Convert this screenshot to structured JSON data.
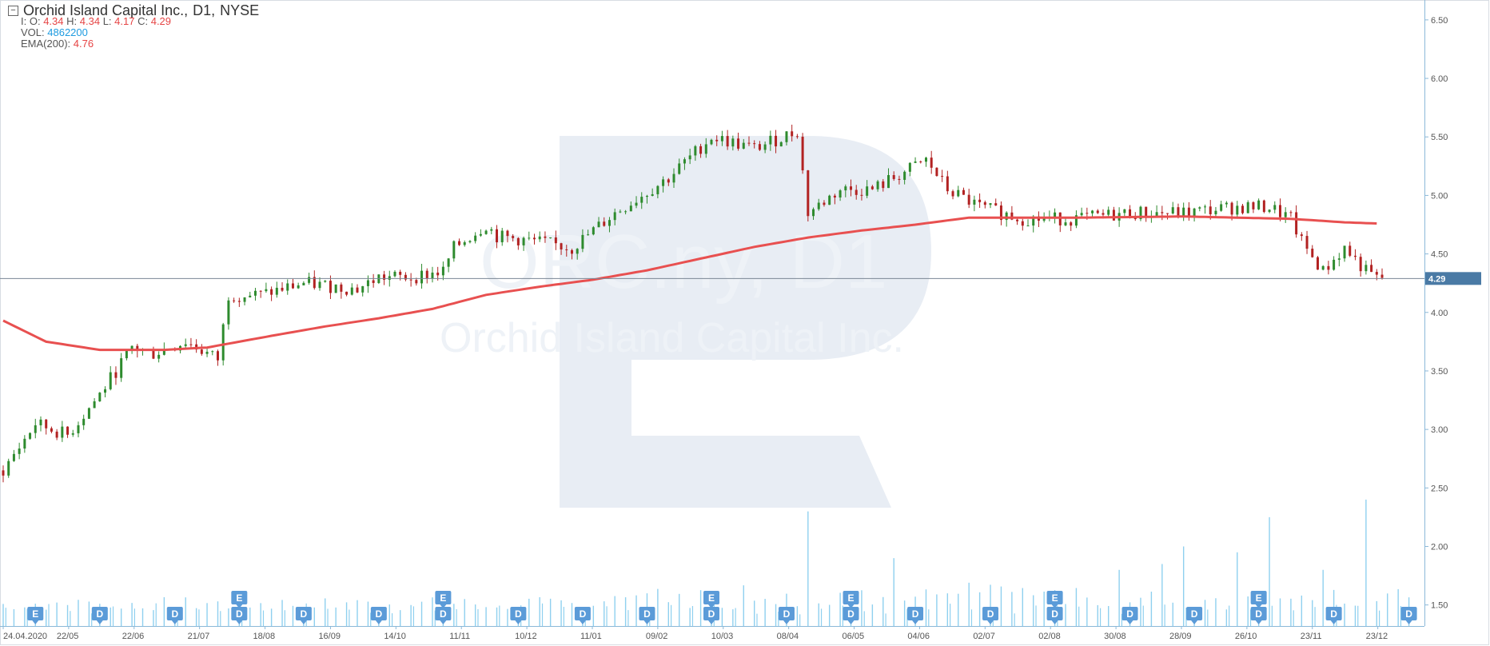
{
  "header": {
    "symbol_title": "Orchid Island Capital Inc.,",
    "timeframe": "D1,",
    "exchange": "NYSE",
    "ohlc": {
      "o_label": "I: O:",
      "o": "4.34",
      "h_label": "H:",
      "h": "4.34",
      "l_label": "L:",
      "l": "4.17",
      "c_label": "C:",
      "c": "4.29"
    },
    "vol_label": "VOL:",
    "vol": "4862200",
    "ema_label": "EMA(200):",
    "ema": "4.76"
  },
  "colors": {
    "up": "#2e8b2e",
    "down": "#b22222",
    "ema": "#e85050",
    "volume": "#8fd0ef",
    "marker": "#5b9bd8",
    "axis": "#8bb8d8",
    "price_tag": "#4a7aa5",
    "watermark": "#e8edf4"
  },
  "watermark_text": [
    "ORC.ny, D1",
    "Orchid Island Capital Inc."
  ],
  "chart_data": {
    "type": "candlestick",
    "title": "Orchid Island Capital Inc., D1, NYSE",
    "ylim": [
      1.32,
      6.67
    ],
    "y_ticks": [
      "1.50",
      "2.00",
      "2.50",
      "3.00",
      "3.50",
      "4.00",
      "4.50",
      "5.00",
      "5.50",
      "6.00",
      "6.50"
    ],
    "x_ticks": [
      "24.04.2020",
      "22/05",
      "22/06",
      "21/07",
      "18/08",
      "16/09",
      "14/10",
      "11/11",
      "10/12",
      "11/01",
      "09/02",
      "10/03",
      "08/04",
      "06/05",
      "04/06",
      "02/07",
      "02/08",
      "30/08",
      "28/09",
      "26/10",
      "23/11",
      "23/12"
    ],
    "last_price": "4.29",
    "price_path": [
      [
        0,
        2.65
      ],
      [
        3,
        3.05
      ],
      [
        6,
        2.95
      ],
      [
        9,
        3.3
      ],
      [
        12,
        3.7
      ],
      [
        14,
        3.65
      ],
      [
        17,
        3.75
      ],
      [
        20,
        3.6
      ],
      [
        21,
        4.15
      ],
      [
        24,
        4.15
      ],
      [
        28,
        4.25
      ],
      [
        33,
        4.2
      ],
      [
        35,
        4.3
      ],
      [
        38,
        4.3
      ],
      [
        41,
        4.35
      ],
      [
        42,
        4.55
      ],
      [
        45,
        4.75
      ],
      [
        46,
        4.65
      ],
      [
        50,
        4.6
      ],
      [
        53,
        4.55
      ],
      [
        57,
        4.85
      ],
      [
        62,
        5.15
      ],
      [
        66,
        5.5
      ],
      [
        70,
        5.4
      ],
      [
        74,
        5.55
      ],
      [
        75,
        4.85
      ],
      [
        78,
        5.05
      ],
      [
        81,
        5.05
      ],
      [
        84,
        5.2
      ],
      [
        86,
        5.3
      ],
      [
        88,
        5.05
      ],
      [
        91,
        4.9
      ],
      [
        95,
        4.8
      ],
      [
        100,
        4.8
      ],
      [
        105,
        4.85
      ],
      [
        110,
        4.85
      ],
      [
        115,
        4.9
      ],
      [
        118,
        4.9
      ],
      [
        120,
        4.8
      ],
      [
        121,
        4.6
      ],
      [
        123,
        4.35
      ],
      [
        125,
        4.55
      ],
      [
        127,
        4.35
      ],
      [
        128,
        4.29
      ]
    ],
    "ema_path": [
      [
        0,
        3.93
      ],
      [
        4,
        3.75
      ],
      [
        9,
        3.68
      ],
      [
        15,
        3.68
      ],
      [
        19,
        3.7
      ],
      [
        25,
        3.8
      ],
      [
        30,
        3.88
      ],
      [
        35,
        3.95
      ],
      [
        40,
        4.03
      ],
      [
        45,
        4.15
      ],
      [
        50,
        4.22
      ],
      [
        55,
        4.28
      ],
      [
        60,
        4.36
      ],
      [
        65,
        4.46
      ],
      [
        70,
        4.56
      ],
      [
        75,
        4.64
      ],
      [
        80,
        4.7
      ],
      [
        85,
        4.75
      ],
      [
        90,
        4.81
      ],
      [
        100,
        4.81
      ],
      [
        110,
        4.82
      ],
      [
        120,
        4.8
      ],
      [
        125,
        4.77
      ],
      [
        128,
        4.76
      ]
    ],
    "volume_spikes": [
      [
        75,
        2.3
      ],
      [
        83,
        1.9
      ],
      [
        104,
        1.8
      ],
      [
        108,
        1.85
      ],
      [
        110,
        2.0
      ],
      [
        115,
        1.95
      ],
      [
        118,
        2.25
      ],
      [
        123,
        1.8
      ],
      [
        127,
        2.4
      ]
    ],
    "events": [
      {
        "pos": 3,
        "labels": [
          "E"
        ]
      },
      {
        "pos": 9,
        "labels": [
          "D"
        ]
      },
      {
        "pos": 16,
        "labels": [
          "D"
        ]
      },
      {
        "pos": 22,
        "labels": [
          "E",
          "D"
        ]
      },
      {
        "pos": 28,
        "labels": [
          "D"
        ]
      },
      {
        "pos": 35,
        "labels": [
          "D"
        ]
      },
      {
        "pos": 41,
        "labels": [
          "E",
          "D"
        ]
      },
      {
        "pos": 48,
        "labels": [
          "D"
        ]
      },
      {
        "pos": 54,
        "labels": [
          "D"
        ]
      },
      {
        "pos": 60,
        "labels": [
          "D"
        ]
      },
      {
        "pos": 66,
        "labels": [
          "E",
          "D"
        ]
      },
      {
        "pos": 73,
        "labels": [
          "D"
        ]
      },
      {
        "pos": 79,
        "labels": [
          "E",
          "D"
        ]
      },
      {
        "pos": 85,
        "labels": [
          "D"
        ]
      },
      {
        "pos": 92,
        "labels": [
          "D"
        ]
      },
      {
        "pos": 98,
        "labels": [
          "E",
          "D"
        ]
      },
      {
        "pos": 105,
        "labels": [
          "D"
        ]
      },
      {
        "pos": 111,
        "labels": [
          "D"
        ]
      },
      {
        "pos": 117,
        "labels": [
          "E",
          "D"
        ]
      },
      {
        "pos": 124,
        "labels": [
          "D"
        ]
      },
      {
        "pos": 131,
        "labels": [
          "D"
        ]
      }
    ]
  }
}
